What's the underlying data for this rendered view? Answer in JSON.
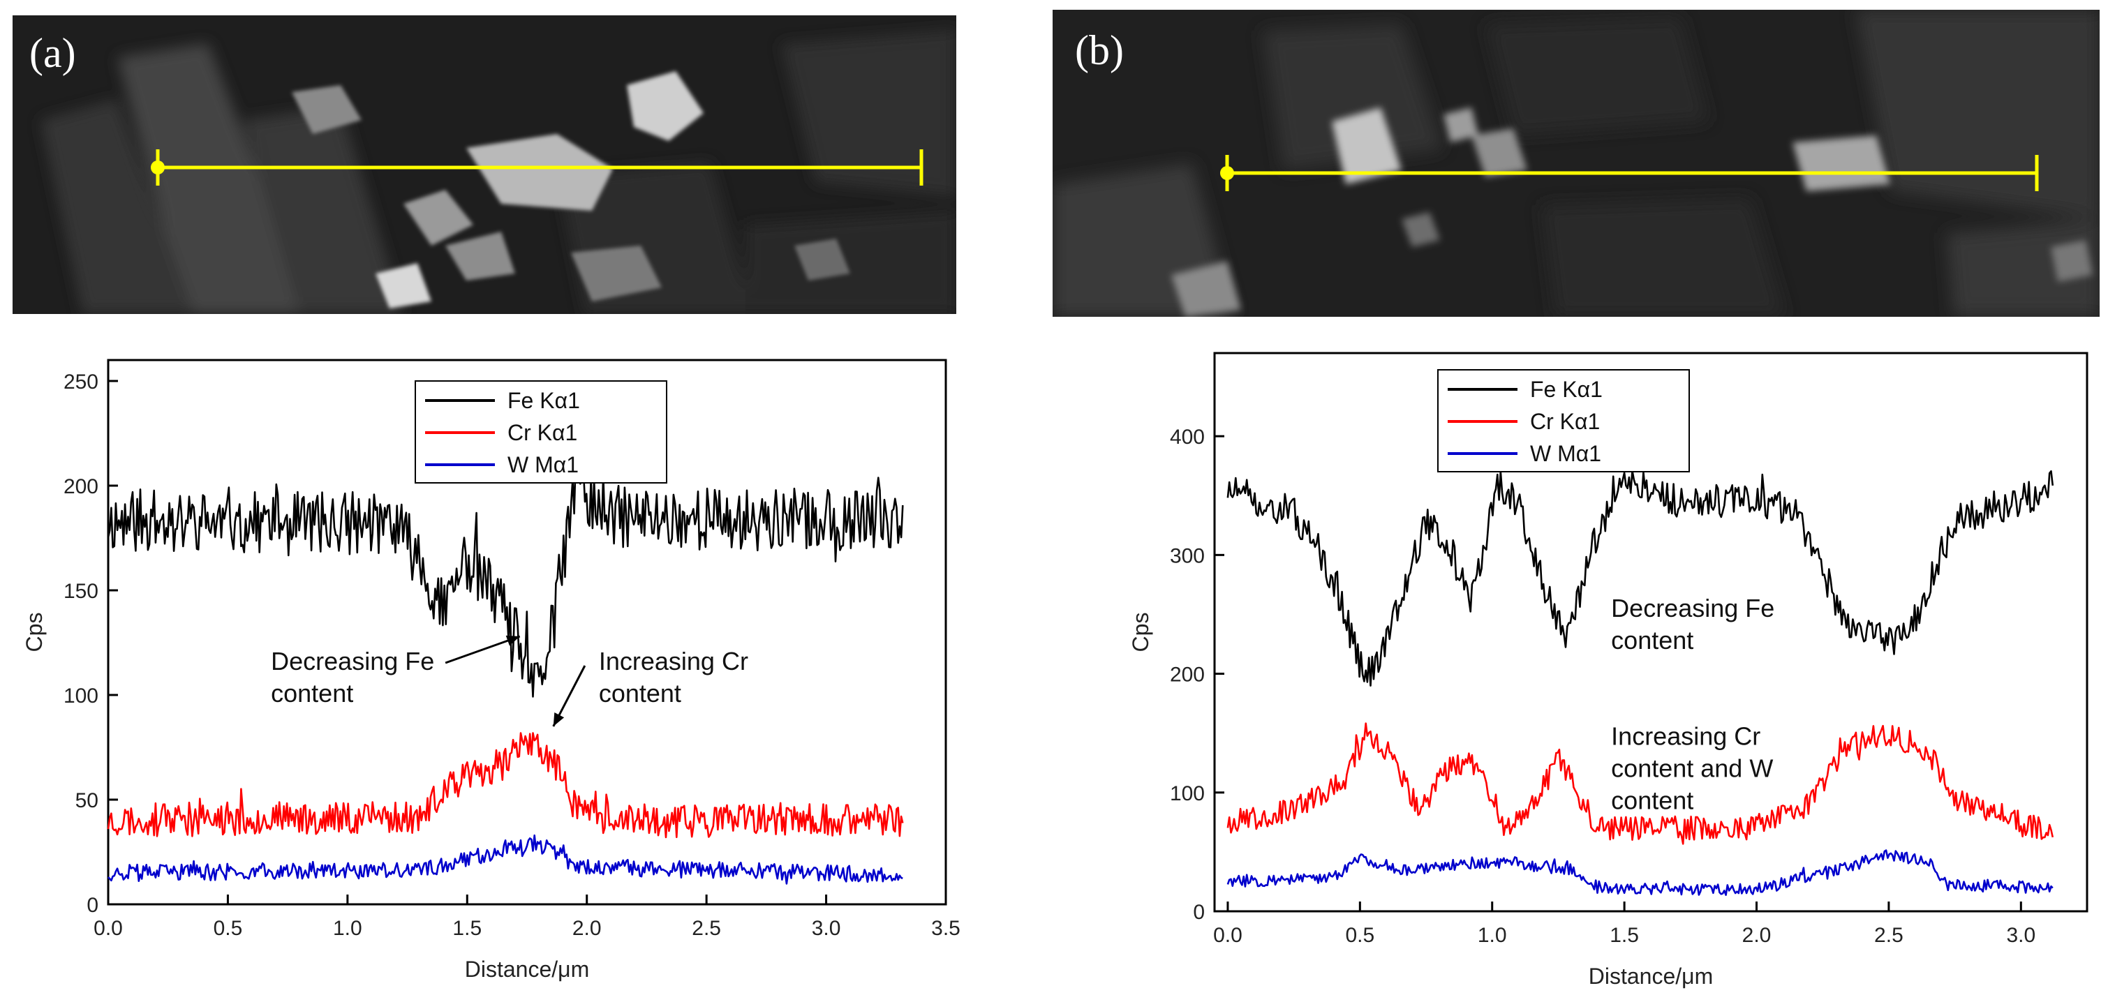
{
  "panels": [
    {
      "label": "(a)"
    },
    {
      "label": "(b)"
    }
  ],
  "colors": {
    "fe": "#000000",
    "cr": "#ff0000",
    "w": "#0000cc",
    "scan_line": "#ffff00"
  },
  "chart_data": [
    {
      "type": "line",
      "panel": "(a)",
      "xlabel": "Distance/μm",
      "ylabel": "Cps",
      "xlim": [
        0.0,
        3.5
      ],
      "ylim": [
        0,
        260
      ],
      "xticks": [
        "0.0",
        "0.5",
        "1.0",
        "1.5",
        "2.0",
        "2.5",
        "3.0",
        "3.5"
      ],
      "yticks": [
        "0",
        "50",
        "100",
        "150",
        "200",
        "250"
      ],
      "legend": [
        "Fe  Kα1",
        "Cr  Kα1",
        "W  Mα1"
      ],
      "legend_position": "top-center",
      "x_end": 3.32,
      "series": [
        {
          "name": "Fe  Kα1",
          "color": "#000000",
          "baseline": 183,
          "noise": 15,
          "profile": [
            [
              0.0,
              183
            ],
            [
              1.2,
              182
            ],
            [
              1.3,
              165
            ],
            [
              1.4,
              140
            ],
            [
              1.5,
              165
            ],
            [
              1.6,
              150
            ],
            [
              1.7,
              128
            ],
            [
              1.8,
              100
            ],
            [
              1.88,
              150
            ],
            [
              1.95,
              200
            ],
            [
              2.1,
              185
            ],
            [
              3.32,
              183
            ]
          ]
        },
        {
          "name": "Cr  Kα1",
          "color": "#ff0000",
          "baseline": 40,
          "noise": 8,
          "profile": [
            [
              0.0,
              40
            ],
            [
              1.3,
              42
            ],
            [
              1.45,
              58
            ],
            [
              1.6,
              65
            ],
            [
              1.75,
              78
            ],
            [
              1.85,
              70
            ],
            [
              1.95,
              48
            ],
            [
              2.1,
              40
            ],
            [
              3.32,
              40
            ]
          ]
        },
        {
          "name": "W  Mα1",
          "color": "#0000cc",
          "baseline": 15,
          "noise": 4,
          "profile": [
            [
              0.0,
              15
            ],
            [
              1.3,
              16
            ],
            [
              1.5,
              22
            ],
            [
              1.8,
              30
            ],
            [
              1.95,
              18
            ],
            [
              3.32,
              14
            ]
          ]
        }
      ],
      "annotations": [
        {
          "lines": [
            "Decreasing Fe",
            "content"
          ],
          "x": 0.68,
          "y": 112,
          "arrow_to": [
            1.72,
            128
          ]
        },
        {
          "lines": [
            "Increasing Cr",
            "content"
          ],
          "x": 2.05,
          "y": 112,
          "arrow_to": [
            1.86,
            85
          ]
        }
      ]
    },
    {
      "type": "line",
      "panel": "(b)",
      "xlabel": "Distance/μm",
      "ylabel": "Cps",
      "xlim": [
        -0.05,
        3.25
      ],
      "ylim": [
        0,
        470
      ],
      "xticks": [
        "0.0",
        "0.5",
        "1.0",
        "1.5",
        "2.0",
        "2.5",
        "3.0"
      ],
      "yticks": [
        "0",
        "100",
        "200",
        "300",
        "400"
      ],
      "legend": [
        "Fe  Kα1",
        "Cr  Kα1",
        "W  Mα1"
      ],
      "legend_position": "top-left",
      "x_end": 3.12,
      "series": [
        {
          "name": "Fe  Kα1",
          "color": "#000000",
          "baseline": 340,
          "noise": 14,
          "profile": [
            [
              0.0,
              355
            ],
            [
              0.25,
              335
            ],
            [
              0.4,
              280
            ],
            [
              0.52,
              195
            ],
            [
              0.6,
              230
            ],
            [
              0.75,
              330
            ],
            [
              0.85,
              300
            ],
            [
              0.92,
              260
            ],
            [
              1.02,
              360
            ],
            [
              1.1,
              340
            ],
            [
              1.2,
              270
            ],
            [
              1.28,
              225
            ],
            [
              1.38,
              310
            ],
            [
              1.5,
              365
            ],
            [
              1.7,
              345
            ],
            [
              2.0,
              345
            ],
            [
              2.15,
              335
            ],
            [
              2.25,
              285
            ],
            [
              2.35,
              240
            ],
            [
              2.5,
              225
            ],
            [
              2.6,
              245
            ],
            [
              2.75,
              330
            ],
            [
              3.0,
              345
            ],
            [
              3.12,
              360
            ]
          ]
        },
        {
          "name": "Cr  Kα1",
          "color": "#ff0000",
          "baseline": 75,
          "noise": 10,
          "profile": [
            [
              0.0,
              75
            ],
            [
              0.25,
              85
            ],
            [
              0.45,
              110
            ],
            [
              0.52,
              150
            ],
            [
              0.62,
              130
            ],
            [
              0.72,
              85
            ],
            [
              0.85,
              125
            ],
            [
              0.95,
              125
            ],
            [
              1.05,
              70
            ],
            [
              1.15,
              90
            ],
            [
              1.25,
              130
            ],
            [
              1.35,
              90
            ],
            [
              1.4,
              70
            ],
            [
              2.0,
              70
            ],
            [
              2.2,
              90
            ],
            [
              2.35,
              140
            ],
            [
              2.5,
              150
            ],
            [
              2.65,
              135
            ],
            [
              2.75,
              95
            ],
            [
              3.0,
              75
            ],
            [
              3.12,
              65
            ]
          ]
        },
        {
          "name": "W  Mα1",
          "color": "#0000cc",
          "baseline": 25,
          "noise": 5,
          "profile": [
            [
              0.0,
              25
            ],
            [
              0.4,
              28
            ],
            [
              0.5,
              45
            ],
            [
              0.65,
              35
            ],
            [
              0.8,
              38
            ],
            [
              1.0,
              42
            ],
            [
              1.1,
              40
            ],
            [
              1.3,
              35
            ],
            [
              1.4,
              20
            ],
            [
              2.0,
              18
            ],
            [
              2.3,
              35
            ],
            [
              2.5,
              48
            ],
            [
              2.65,
              42
            ],
            [
              2.72,
              22
            ],
            [
              3.12,
              20
            ]
          ]
        }
      ],
      "annotations": [
        {
          "lines": [
            "Decreasing Fe",
            "content"
          ],
          "x": 1.45,
          "y": 248
        },
        {
          "lines": [
            "Increasing Cr",
            "content and W",
            "content"
          ],
          "x": 1.45,
          "y": 140
        }
      ]
    }
  ]
}
